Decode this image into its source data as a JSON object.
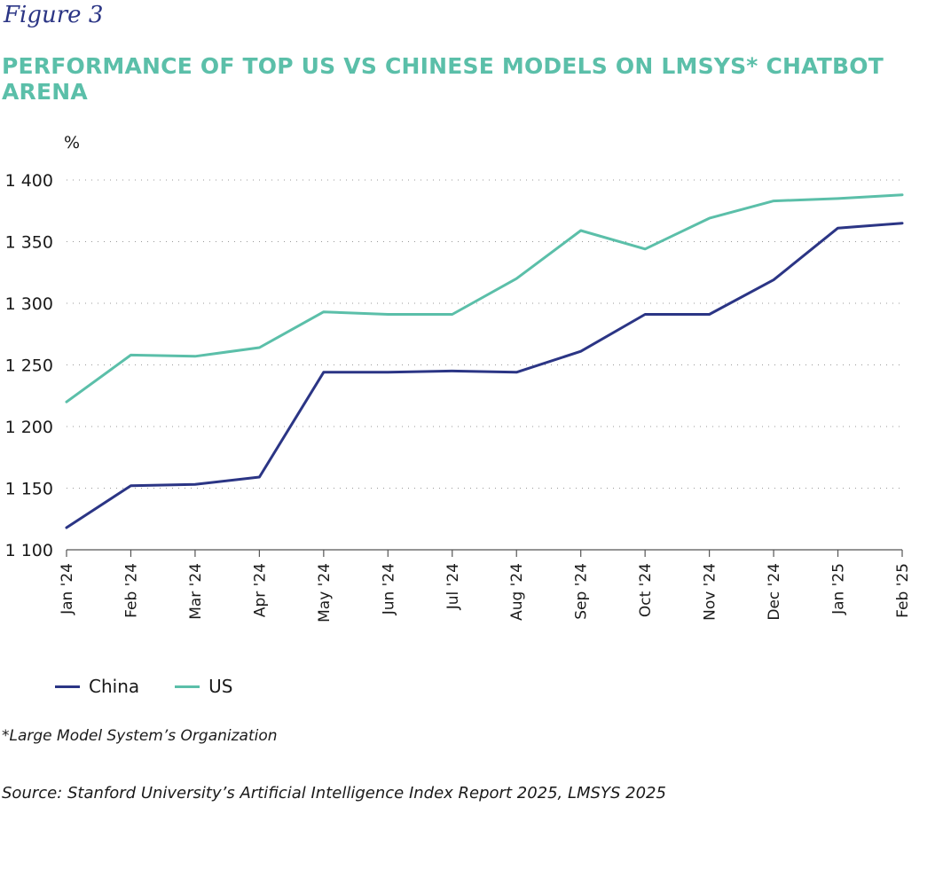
{
  "figure_label": "Figure 3",
  "chart_data": {
    "type": "line",
    "title": "PERFORMANCE OF TOP US VS CHINESE MODELS ON LMSYS* CHATBOT ARENA",
    "ylabel": "%",
    "xlabel": "",
    "ylim": [
      1100,
      1400
    ],
    "yticks": [
      1100,
      1150,
      1200,
      1250,
      1300,
      1350,
      1400
    ],
    "ytick_labels": [
      "1 100",
      "1 150",
      "1 200",
      "1 250",
      "1 300",
      "1 350",
      "1 400"
    ],
    "categories": [
      "Jan '24",
      "Feb '24",
      "Mar '24",
      "Apr '24",
      "May '24",
      "Jun '24",
      "Jul '24",
      "Aug '24",
      "Sep '24",
      "Oct '24",
      "Nov '24",
      "Dec '24",
      "Jan '25",
      "Feb '25"
    ],
    "series": [
      {
        "name": "China",
        "color": "#2b3585",
        "values": [
          1118,
          1152,
          1153,
          1159,
          1244,
          1244,
          1245,
          1244,
          1261,
          1291,
          1291,
          1319,
          1361,
          1365
        ]
      },
      {
        "name": "US",
        "color": "#5bbfa9",
        "values": [
          1220,
          1258,
          1257,
          1264,
          1293,
          1291,
          1291,
          1320,
          1359,
          1344,
          1369,
          1383,
          1385,
          1388
        ]
      }
    ],
    "grid": true,
    "legend_position": "bottom-left"
  },
  "footnote": "*Large Model System’s Organization",
  "source": "Source: Stanford University’s Artificial Intelligence Index Report 2025, LMSYS 2025"
}
